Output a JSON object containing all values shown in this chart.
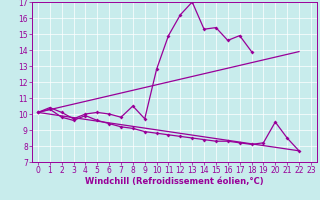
{
  "xlabel": "Windchill (Refroidissement éolien,°C)",
  "bg_color": "#c8ecec",
  "line_color": "#990099",
  "xlim_min": -0.5,
  "xlim_max": 23.5,
  "ylim_min": 7,
  "ylim_max": 17,
  "xticks": [
    0,
    1,
    2,
    3,
    4,
    5,
    6,
    7,
    8,
    9,
    10,
    11,
    12,
    13,
    14,
    15,
    16,
    17,
    18,
    19,
    20,
    21,
    22,
    23
  ],
  "yticks": [
    7,
    8,
    9,
    10,
    11,
    12,
    13,
    14,
    15,
    16,
    17
  ],
  "line1_x": [
    0,
    1,
    2,
    3,
    4,
    5,
    6,
    7,
    8,
    9,
    10,
    11,
    12,
    13,
    14,
    15,
    16,
    17,
    18
  ],
  "line1_y": [
    10.1,
    10.4,
    10.1,
    9.7,
    10.0,
    10.1,
    10.0,
    9.8,
    10.5,
    9.7,
    12.8,
    14.9,
    16.2,
    17.0,
    15.3,
    15.4,
    14.6,
    14.9,
    13.9
  ],
  "line2_x": [
    0,
    1,
    2,
    3,
    4,
    5,
    6,
    7,
    8,
    9,
    10,
    11,
    12,
    13,
    14,
    15,
    16,
    17,
    18,
    19,
    20,
    21,
    22
  ],
  "line2_y": [
    10.1,
    10.3,
    9.8,
    9.6,
    9.9,
    9.6,
    9.4,
    9.2,
    9.1,
    8.9,
    8.8,
    8.7,
    8.6,
    8.5,
    8.4,
    8.3,
    8.3,
    8.2,
    8.1,
    8.2,
    9.5,
    8.5,
    7.7
  ],
  "line3_x": [
    0,
    22
  ],
  "line3_y": [
    10.1,
    13.9
  ],
  "line4_x": [
    0,
    22
  ],
  "line4_y": [
    10.1,
    7.7
  ],
  "grid_color": "#ffffff",
  "tick_fontsize": 5.5,
  "xlabel_fontsize": 6.0
}
